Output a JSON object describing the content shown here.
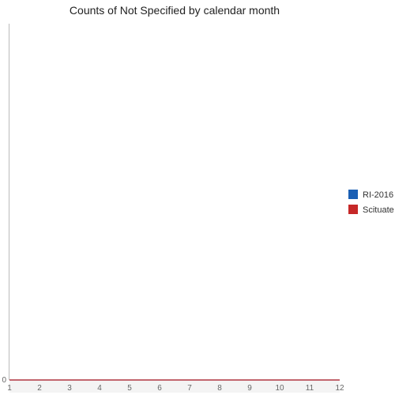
{
  "chart_data": {
    "type": "line",
    "title": "Counts of Not Specified by calendar month",
    "xlabel": "",
    "ylabel": "",
    "x": [
      1,
      2,
      3,
      4,
      5,
      6,
      7,
      8,
      9,
      10,
      11,
      12
    ],
    "xlim": [
      1,
      12
    ],
    "ylim": [
      0,
      1
    ],
    "y_ticks": [
      0
    ],
    "grid": false,
    "legend_position": "right",
    "series": [
      {
        "name": "RI-2016",
        "color": "#1a5fb4",
        "values": [
          0,
          0,
          0,
          0,
          0,
          0,
          0,
          0,
          0,
          0,
          0,
          0
        ]
      },
      {
        "name": "Scituate",
        "color": "#c62828",
        "values": [
          0,
          0,
          0,
          0,
          0,
          0,
          0,
          0,
          0,
          0,
          0,
          0
        ]
      }
    ]
  }
}
